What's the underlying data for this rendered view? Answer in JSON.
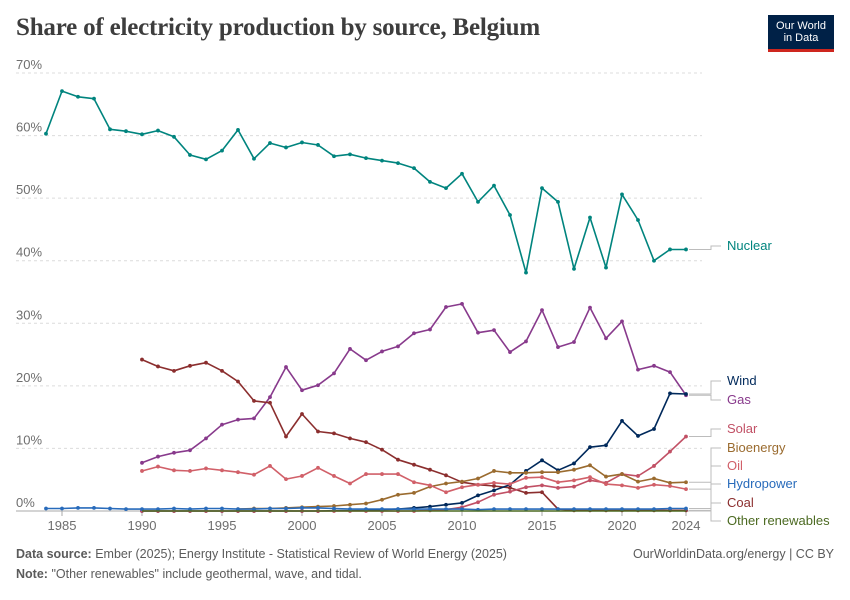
{
  "header": {
    "title": "Share of electricity production by source, Belgium",
    "logo_line1": "Our World",
    "logo_line2": "in Data"
  },
  "footer": {
    "source_label": "Data source:",
    "source_text": "Ember (2025); Energy Institute - Statistical Review of World Energy (2025)",
    "link_text": "OurWorldinData.org/energy | CC BY",
    "note_label": "Note:",
    "note_text": "\"Other renewables\" include geothermal, wave, and tidal."
  },
  "chart_data": {
    "type": "line",
    "title": "Share of electricity production by source, Belgium",
    "xlabel": "",
    "ylabel": "",
    "xlim": [
      1984,
      2025
    ],
    "ylim": [
      0,
      70
    ],
    "y_ticks": [
      0,
      10,
      20,
      30,
      40,
      50,
      60,
      70
    ],
    "y_tick_labels": [
      "0%",
      "10%",
      "20%",
      "30%",
      "40%",
      "50%",
      "60%",
      "70%"
    ],
    "x_ticks": [
      1985,
      1990,
      1995,
      2000,
      2005,
      2010,
      2015,
      2020,
      2024
    ],
    "x_tick_labels": [
      "1985",
      "1990",
      "1995",
      "2000",
      "2005",
      "2010",
      "2015",
      "2020",
      "2024"
    ],
    "gridlines": "horizontal dashed",
    "series": [
      {
        "name": "Nuclear",
        "color": "#00847e",
        "x": [
          1984,
          1985,
          1986,
          1987,
          1988,
          1989,
          1990,
          1991,
          1992,
          1993,
          1994,
          1995,
          1996,
          1997,
          1998,
          1999,
          2000,
          2001,
          2002,
          2003,
          2004,
          2005,
          2006,
          2007,
          2008,
          2009,
          2010,
          2011,
          2012,
          2013,
          2014,
          2015,
          2016,
          2017,
          2018,
          2019,
          2020,
          2021,
          2022,
          2023,
          2024
        ],
        "y": [
          60.3,
          67.1,
          66.2,
          65.9,
          61.0,
          60.7,
          60.2,
          60.8,
          59.8,
          56.9,
          56.2,
          57.6,
          60.9,
          56.3,
          58.8,
          58.1,
          58.9,
          58.5,
          56.7,
          57.0,
          56.4,
          56.0,
          55.6,
          54.8,
          52.6,
          51.6,
          53.9,
          49.4,
          52.0,
          47.3,
          38.1,
          51.6,
          49.4,
          38.7,
          46.9,
          38.9,
          50.6,
          46.5,
          40.0,
          41.8,
          41.8
        ]
      },
      {
        "name": "Gas",
        "color": "#883a8c",
        "x": [
          1990,
          1991,
          1992,
          1993,
          1994,
          1995,
          1996,
          1997,
          1998,
          1999,
          2000,
          2001,
          2002,
          2003,
          2004,
          2005,
          2006,
          2007,
          2008,
          2009,
          2010,
          2011,
          2012,
          2013,
          2014,
          2015,
          2016,
          2017,
          2018,
          2019,
          2020,
          2021,
          2022,
          2023,
          2024
        ],
        "y": [
          7.7,
          8.7,
          9.3,
          9.7,
          11.6,
          13.8,
          14.6,
          14.8,
          18.2,
          23.0,
          19.3,
          20.1,
          22.0,
          25.9,
          24.1,
          25.5,
          26.3,
          28.4,
          29.0,
          32.6,
          33.1,
          28.5,
          28.9,
          25.4,
          27.1,
          32.1,
          26.2,
          27.0,
          32.5,
          27.6,
          30.3,
          22.6,
          23.2,
          22.2,
          18.5
        ]
      },
      {
        "name": "Coal",
        "color": "#8b2e2e",
        "x": [
          1990,
          1991,
          1992,
          1993,
          1994,
          1995,
          1996,
          1997,
          1998,
          1999,
          2000,
          2001,
          2002,
          2003,
          2004,
          2005,
          2006,
          2007,
          2008,
          2009,
          2010,
          2011,
          2012,
          2013,
          2014,
          2015,
          2016,
          2017,
          2018,
          2019,
          2020,
          2021,
          2022,
          2023,
          2024
        ],
        "y": [
          24.2,
          23.1,
          22.4,
          23.2,
          23.7,
          22.4,
          20.7,
          17.6,
          17.3,
          11.9,
          15.5,
          12.7,
          12.4,
          11.6,
          11.0,
          9.8,
          8.2,
          7.4,
          6.6,
          5.7,
          4.6,
          4.2,
          4.0,
          3.7,
          2.9,
          3.0,
          0.3,
          0.1,
          0.1,
          0.1,
          0.1,
          0.1,
          0.1,
          0.1,
          0.1
        ]
      },
      {
        "name": "Wind",
        "color": "#00295b",
        "x": [
          1990,
          1991,
          1992,
          1993,
          1994,
          1995,
          1996,
          1997,
          1998,
          1999,
          2000,
          2001,
          2002,
          2003,
          2004,
          2005,
          2006,
          2007,
          2008,
          2009,
          2010,
          2011,
          2012,
          2013,
          2014,
          2015,
          2016,
          2017,
          2018,
          2019,
          2020,
          2021,
          2022,
          2023,
          2024
        ],
        "y": [
          0,
          0,
          0,
          0,
          0,
          0,
          0,
          0,
          0,
          0,
          0,
          0,
          0.05,
          0.05,
          0.1,
          0.2,
          0.3,
          0.5,
          0.7,
          1.0,
          1.3,
          2.5,
          3.3,
          4.2,
          6.4,
          8.1,
          6.5,
          7.6,
          10.2,
          10.5,
          14.4,
          12.0,
          13.1,
          18.8,
          18.7
        ]
      },
      {
        "name": "Solar",
        "color": "#c15065",
        "x": [
          1990,
          1991,
          1992,
          1993,
          1994,
          1995,
          1996,
          1997,
          1998,
          1999,
          2000,
          2001,
          2002,
          2003,
          2004,
          2005,
          2006,
          2007,
          2008,
          2009,
          2010,
          2011,
          2012,
          2013,
          2014,
          2015,
          2016,
          2017,
          2018,
          2019,
          2020,
          2021,
          2022,
          2023,
          2024
        ],
        "y": [
          0,
          0,
          0,
          0,
          0,
          0,
          0,
          0,
          0,
          0,
          0,
          0,
          0,
          0,
          0,
          0,
          0,
          0,
          0.1,
          0.2,
          0.6,
          1.4,
          2.6,
          3.1,
          3.8,
          4.1,
          3.7,
          3.9,
          4.9,
          4.5,
          5.9,
          5.6,
          7.2,
          9.5,
          11.9
        ]
      },
      {
        "name": "Bioenergy",
        "color": "#9a6b2f",
        "x": [
          1996,
          1997,
          1998,
          1999,
          2000,
          2001,
          2002,
          2003,
          2004,
          2005,
          2006,
          2007,
          2008,
          2009,
          2010,
          2011,
          2012,
          2013,
          2014,
          2015,
          2016,
          2017,
          2018,
          2019,
          2020,
          2021,
          2022,
          2023,
          2024
        ],
        "y": [
          0.3,
          0.4,
          0.4,
          0.5,
          0.6,
          0.7,
          0.8,
          1.0,
          1.2,
          1.8,
          2.6,
          2.9,
          3.9,
          4.4,
          4.7,
          5.2,
          6.4,
          6.1,
          6.1,
          6.2,
          6.2,
          6.6,
          7.3,
          5.5,
          5.9,
          4.7,
          5.2,
          4.5,
          4.6
        ]
      },
      {
        "name": "Oil",
        "color": "#d16069",
        "x": [
          1990,
          1991,
          1992,
          1993,
          1994,
          1995,
          1996,
          1997,
          1998,
          1999,
          2000,
          2001,
          2002,
          2003,
          2004,
          2005,
          2006,
          2007,
          2008,
          2009,
          2010,
          2011,
          2012,
          2013,
          2014,
          2015,
          2016,
          2017,
          2018,
          2019,
          2020,
          2021,
          2022,
          2023,
          2024
        ],
        "y": [
          6.4,
          7.1,
          6.5,
          6.4,
          6.8,
          6.5,
          6.2,
          5.8,
          7.2,
          5.1,
          5.6,
          6.9,
          5.6,
          4.4,
          5.9,
          5.9,
          5.9,
          4.6,
          4.1,
          3.0,
          3.8,
          4.2,
          4.5,
          4.3,
          5.3,
          5.4,
          4.6,
          4.9,
          5.4,
          4.3,
          4.1,
          3.7,
          4.2,
          4.0,
          3.5
        ]
      },
      {
        "name": "Hydropower",
        "color": "#286bbb",
        "x": [
          1984,
          1985,
          1986,
          1987,
          1988,
          1989,
          1990,
          1991,
          1992,
          1993,
          1994,
          1995,
          1996,
          1997,
          1998,
          1999,
          2000,
          2001,
          2002,
          2003,
          2004,
          2005,
          2006,
          2007,
          2008,
          2009,
          2010,
          2011,
          2012,
          2013,
          2014,
          2015,
          2016,
          2017,
          2018,
          2019,
          2020,
          2021,
          2022,
          2023,
          2024
        ],
        "y": [
          0.4,
          0.4,
          0.5,
          0.5,
          0.4,
          0.3,
          0.3,
          0.3,
          0.4,
          0.3,
          0.4,
          0.4,
          0.3,
          0.3,
          0.4,
          0.4,
          0.5,
          0.5,
          0.4,
          0.3,
          0.3,
          0.3,
          0.3,
          0.3,
          0.3,
          0.3,
          0.3,
          0.2,
          0.3,
          0.3,
          0.3,
          0.3,
          0.3,
          0.3,
          0.3,
          0.3,
          0.3,
          0.3,
          0.3,
          0.4,
          0.4
        ]
      },
      {
        "name": "Other renewables",
        "color": "#4c6a22",
        "x": [
          1990,
          2024
        ],
        "y": [
          0,
          0
        ]
      }
    ],
    "end_labels": [
      "Nuclear",
      "Wind",
      "Gas",
      "Solar",
      "Bioenergy",
      "Oil",
      "Hydropower",
      "Coal",
      "Other renewables"
    ]
  }
}
